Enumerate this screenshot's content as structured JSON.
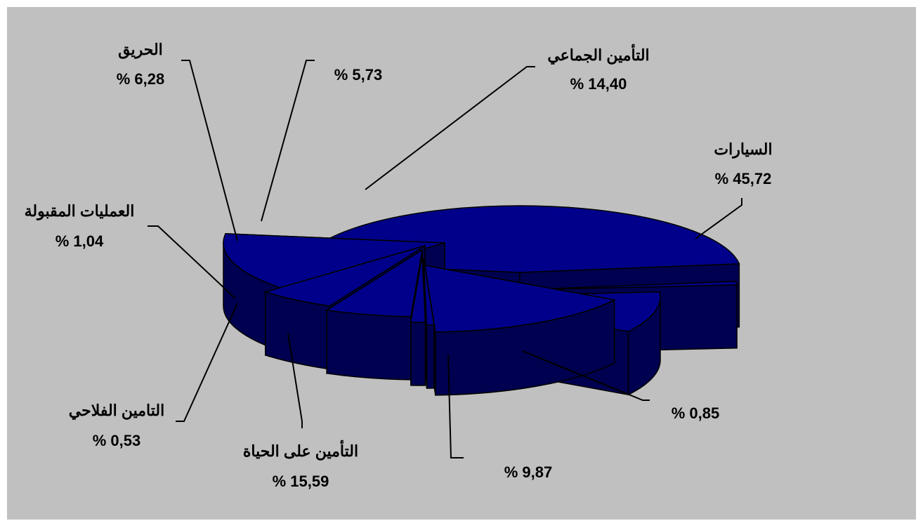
{
  "chart_data": {
    "type": "pie",
    "style": "3d-exploded",
    "title": "",
    "colors": {
      "top": "#00008b",
      "side": "#000050",
      "edge": "#000000",
      "background": "#c0c0c0"
    },
    "slices": [
      {
        "name": "السيارات",
        "value_label": "% 45,72",
        "value": 45.72
      },
      {
        "name": "",
        "value_label": "% 0,85",
        "value": 0.85
      },
      {
        "name": "",
        "value_label": "% 9,87",
        "value": 9.87
      },
      {
        "name": "التأمين على الحياة",
        "value_label": "% 15,59",
        "value": 15.59
      },
      {
        "name": "التامين الفلاحي",
        "value_label": "% 0,53",
        "value": 0.53
      },
      {
        "name": "العمليات المقبولة",
        "value_label": "% 1,04",
        "value": 1.04
      },
      {
        "name": "الحريق",
        "value_label": "% 6,28",
        "value": 6.28
      },
      {
        "name": "",
        "value_label": "% 5,73",
        "value": 5.73
      },
      {
        "name": "التأمين الجماعي",
        "value_label": "% 14,40",
        "value": 14.4
      }
    ]
  }
}
